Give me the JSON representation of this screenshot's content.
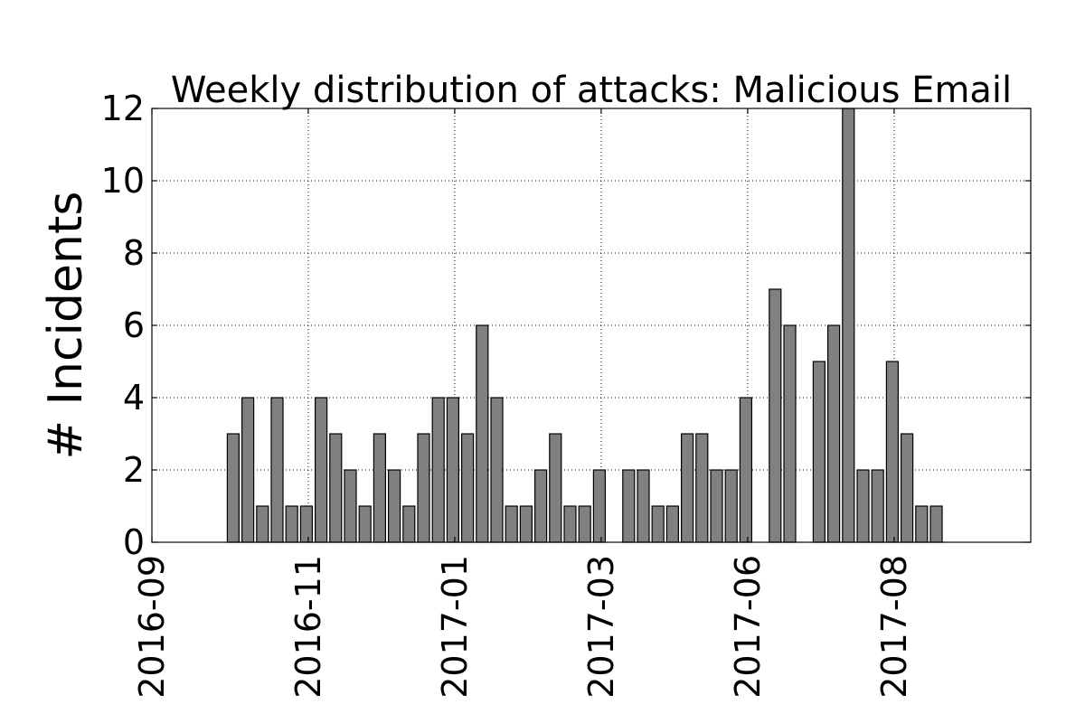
{
  "chart_data": {
    "type": "bar",
    "title": "Weekly distribution of attacks: Malicious Email",
    "ylabel": "# Incidents",
    "xlabel": "",
    "ylim": [
      0,
      12
    ],
    "yticks": [
      "0",
      "2",
      "4",
      "6",
      "8",
      "10",
      "12"
    ],
    "xticks": [
      "2016-09",
      "2016-11",
      "2017-01",
      "2017-03",
      "2017-06",
      "2017-08"
    ],
    "grid": true,
    "bar_color": "#808080",
    "values": [
      0,
      0,
      0,
      0,
      3,
      4,
      1,
      4,
      1,
      1,
      4,
      3,
      2,
      1,
      3,
      2,
      1,
      3,
      4,
      4,
      3,
      6,
      4,
      1,
      1,
      2,
      3,
      1,
      1,
      2,
      0,
      2,
      2,
      1,
      1,
      3,
      3,
      2,
      2,
      4,
      0,
      7,
      6,
      0,
      5,
      6,
      12,
      2,
      2,
      5,
      3,
      1,
      1,
      0,
      0,
      0,
      0,
      0,
      0,
      0
    ]
  }
}
